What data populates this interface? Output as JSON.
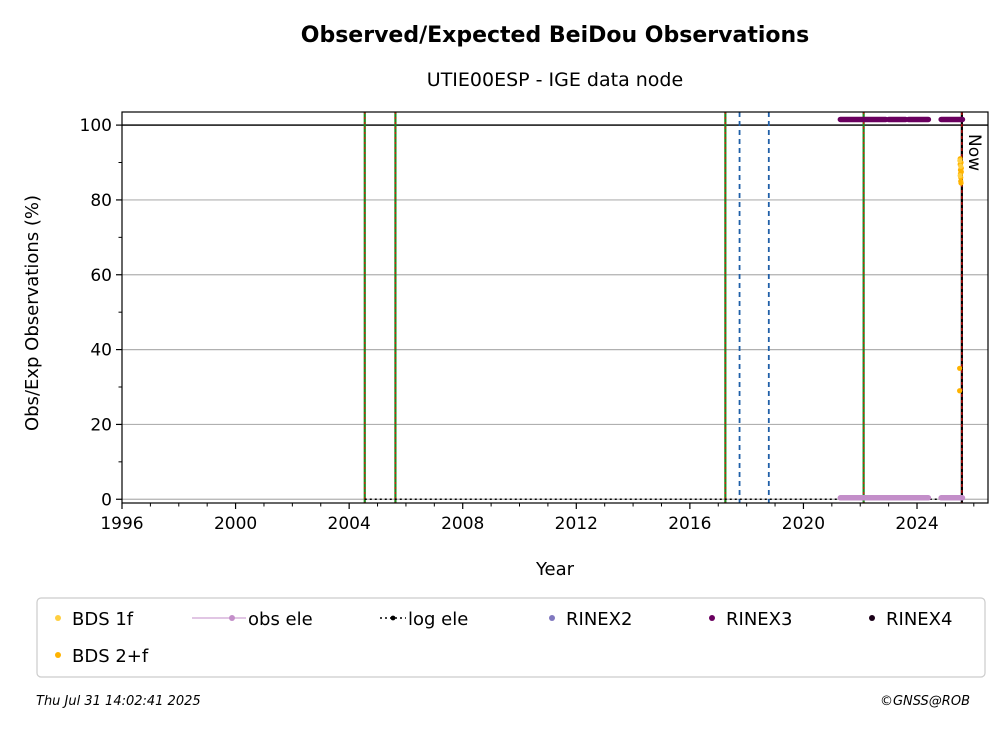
{
  "chart_data": {
    "type": "scatter",
    "title": "Observed/Expected BeiDou Observations",
    "subtitle": "UTIE00ESP - IGE data node",
    "xlabel": "Year",
    "ylabel": "Obs/Exp Observations (%)",
    "xlim": [
      1996,
      2026.5
    ],
    "ylim": [
      -1,
      103.5
    ],
    "x_ticks": [
      "1996",
      "2000",
      "2004",
      "2008",
      "2012",
      "2016",
      "2020",
      "2024"
    ],
    "y_ticks": [
      "0",
      "20",
      "40",
      "60",
      "80",
      "100"
    ],
    "grid": "horizontal",
    "reference_line_y": 100,
    "now_label": "Now",
    "now_x": 2025.58,
    "green_red_event_years": [
      2004.55,
      2005.63,
      2017.25,
      2022.12
    ],
    "blue_dashed_event_years": [
      2017.75,
      2018.78
    ],
    "log_ele_line": {
      "x_start": 2004.55,
      "x_end": 2025.58,
      "y": 0
    },
    "legend_position": "below",
    "legend": [
      {
        "label": "BDS 1f",
        "color": "#ffcf40",
        "marker": "dot"
      },
      {
        "label": "obs ele",
        "color": "#c38ec9",
        "marker": "line-dot"
      },
      {
        "label": "log ele",
        "color": "#000000",
        "marker": "dotted-dot"
      },
      {
        "label": "RINEX2",
        "color": "#8078bf",
        "marker": "dot"
      },
      {
        "label": "RINEX3",
        "color": "#6a005f",
        "marker": "dot"
      },
      {
        "label": "RINEX4",
        "color": "#1a0018",
        "marker": "dot"
      },
      {
        "label": "BDS 2+f",
        "color": "#ffb300",
        "marker": "dot"
      }
    ],
    "series": [
      {
        "name": "RINEX3",
        "color": "#6a005f",
        "y": 101.5,
        "segments": [
          [
            2021.3,
            2022.9
          ],
          [
            2023.0,
            2023.6
          ],
          [
            2023.7,
            2024.4
          ],
          [
            2024.85,
            2025.6
          ]
        ]
      },
      {
        "name": "obs ele",
        "color": "#c38ec9",
        "y": 0.4,
        "segments": [
          [
            2021.3,
            2024.4
          ],
          [
            2024.85,
            2025.6
          ]
        ]
      },
      {
        "name": "BDS 2+f",
        "color": "#ffb300",
        "points": [
          [
            2025.52,
            91
          ],
          [
            2025.52,
            89.5
          ],
          [
            2025.53,
            88
          ],
          [
            2025.53,
            87
          ],
          [
            2025.54,
            86
          ],
          [
            2025.54,
            85
          ],
          [
            2025.55,
            84.5
          ],
          [
            2025.55,
            90
          ],
          [
            2025.56,
            88.5
          ],
          [
            2025.56,
            87.5
          ],
          [
            2025.5,
            35
          ],
          [
            2025.5,
            29
          ]
        ]
      },
      {
        "name": "BDS 1f",
        "color": "#ffcf40",
        "points": [
          [
            2025.51,
            90.5
          ],
          [
            2025.52,
            86.5
          ],
          [
            2025.54,
            89
          ]
        ]
      }
    ]
  },
  "footer": {
    "timestamp": "Thu Jul 31 14:02:41 2025",
    "credit": "©GNSS@ROB"
  }
}
